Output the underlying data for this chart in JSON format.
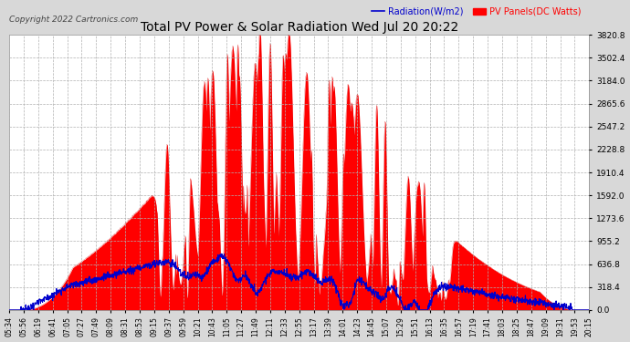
{
  "title": "Total PV Power & Solar Radiation Wed Jul 20 20:22",
  "copyright": "Copyright 2022 Cartronics.com",
  "legend_radiation": "Radiation(W/m2)",
  "legend_pv": "PV Panels(DC Watts)",
  "ylabel_right_ticks": [
    0.0,
    318.4,
    636.8,
    955.2,
    1273.6,
    1592.0,
    1910.4,
    2228.8,
    2547.2,
    2865.6,
    3184.0,
    3502.4,
    3820.8
  ],
  "ymax": 3820.8,
  "bg_color": "#d8d8d8",
  "plot_bg_color": "#ffffff",
  "grid_color": "#b0b0b0",
  "pv_fill_color": "#ff0000",
  "pv_line_color": "#cc0000",
  "radiation_line_color": "#0000cc",
  "title_color": "#000000",
  "copyright_color": "#444444",
  "xtick_labels": [
    "05:34",
    "05:56",
    "06:19",
    "06:41",
    "07:05",
    "07:27",
    "07:49",
    "08:09",
    "08:31",
    "08:53",
    "09:15",
    "09:37",
    "09:59",
    "10:21",
    "10:43",
    "11:05",
    "11:27",
    "11:49",
    "12:11",
    "12:33",
    "12:55",
    "13:17",
    "13:39",
    "14:01",
    "14:23",
    "14:45",
    "15:07",
    "15:29",
    "15:51",
    "16:13",
    "16:35",
    "16:57",
    "17:19",
    "17:41",
    "18:03",
    "18:25",
    "18:47",
    "19:09",
    "19:31",
    "19:53",
    "20:15"
  ],
  "num_points": 2000
}
